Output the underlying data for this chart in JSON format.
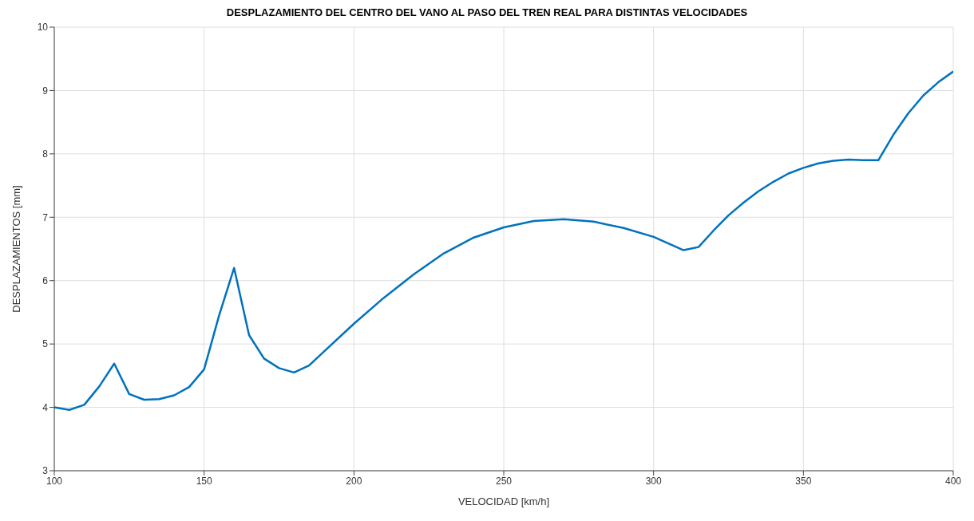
{
  "chart_data": {
    "type": "line",
    "title": "DESPLAZAMIENTO DEL CENTRO DEL VANO AL PASO DEL TREN REAL PARA DISTINTAS VELOCIDADES",
    "xlabel": "VELOCIDAD [km/h]",
    "ylabel": "DESPLAZAMIENTOS [mm]",
    "x": [
      100,
      105,
      110,
      115,
      120,
      125,
      130,
      135,
      140,
      145,
      150,
      155,
      160,
      165,
      170,
      175,
      180,
      185,
      190,
      200,
      210,
      220,
      230,
      240,
      250,
      260,
      270,
      280,
      290,
      300,
      310,
      315,
      320,
      325,
      330,
      335,
      340,
      345,
      350,
      355,
      360,
      365,
      370,
      375,
      380,
      385,
      390,
      395,
      400
    ],
    "series": [
      {
        "color": "#0072bd",
        "values": [
          4.0,
          3.96,
          4.04,
          4.33,
          4.69,
          4.21,
          4.12,
          4.13,
          4.19,
          4.32,
          4.6,
          5.45,
          6.2,
          5.14,
          4.77,
          4.62,
          4.55,
          4.66,
          4.88,
          5.32,
          5.73,
          6.1,
          6.43,
          6.68,
          6.84,
          6.94,
          6.97,
          6.93,
          6.83,
          6.69,
          6.48,
          6.53,
          6.79,
          7.03,
          7.23,
          7.41,
          7.56,
          7.69,
          7.78,
          7.85,
          7.89,
          7.91,
          7.9,
          7.9,
          8.3,
          8.64,
          8.92,
          9.13,
          9.3
        ]
      }
    ],
    "xlim": [
      100,
      400
    ],
    "xticks": [
      100,
      150,
      200,
      250,
      300,
      350,
      400
    ],
    "ylim": [
      3,
      10
    ],
    "yticks": [
      3,
      4,
      5,
      6,
      7,
      8,
      9,
      10
    ],
    "grid": true,
    "legend": false,
    "marker": "none",
    "line_style": "solid"
  }
}
